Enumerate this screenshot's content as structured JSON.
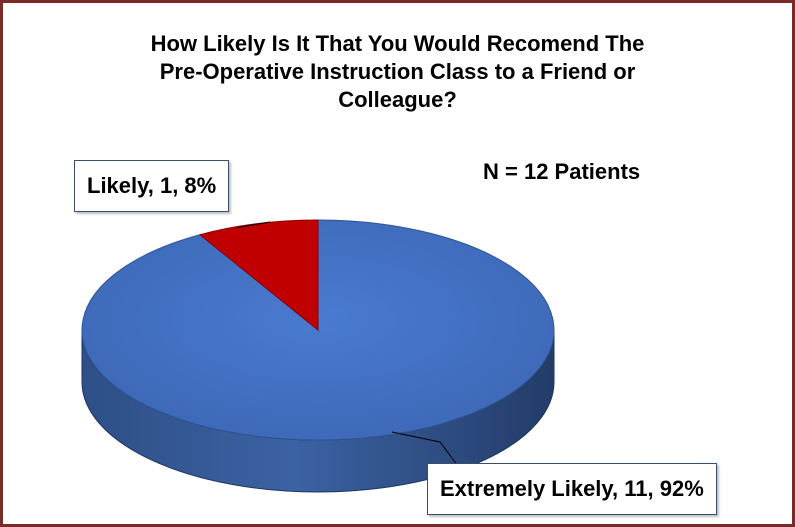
{
  "chart_data": {
    "type": "pie",
    "title": "How Likely Is It That You Would Recomend The Pre-Operative Instruction Class to a Friend or Colleague?",
    "title_lines": [
      "How Likely Is It That You Would Recomend The",
      "Pre-Operative Instruction Class to a Friend or",
      "Colleague?"
    ],
    "annotation": "N = 12 Patients",
    "slices": [
      {
        "label": "Likely",
        "value": 1,
        "percent": 8,
        "data_label": "Likely, 1, 8%",
        "color": "#c00000"
      },
      {
        "label": "Extremely Likely",
        "value": 11,
        "percent": 92,
        "data_label": "Extremely Likely, 11, 92%",
        "color": "#4472c4"
      }
    ],
    "style": "3d",
    "legend": "none"
  },
  "colors": {
    "border": "#7b2a2a",
    "extremely_likely": "#4472c4",
    "likely": "#c00000"
  }
}
